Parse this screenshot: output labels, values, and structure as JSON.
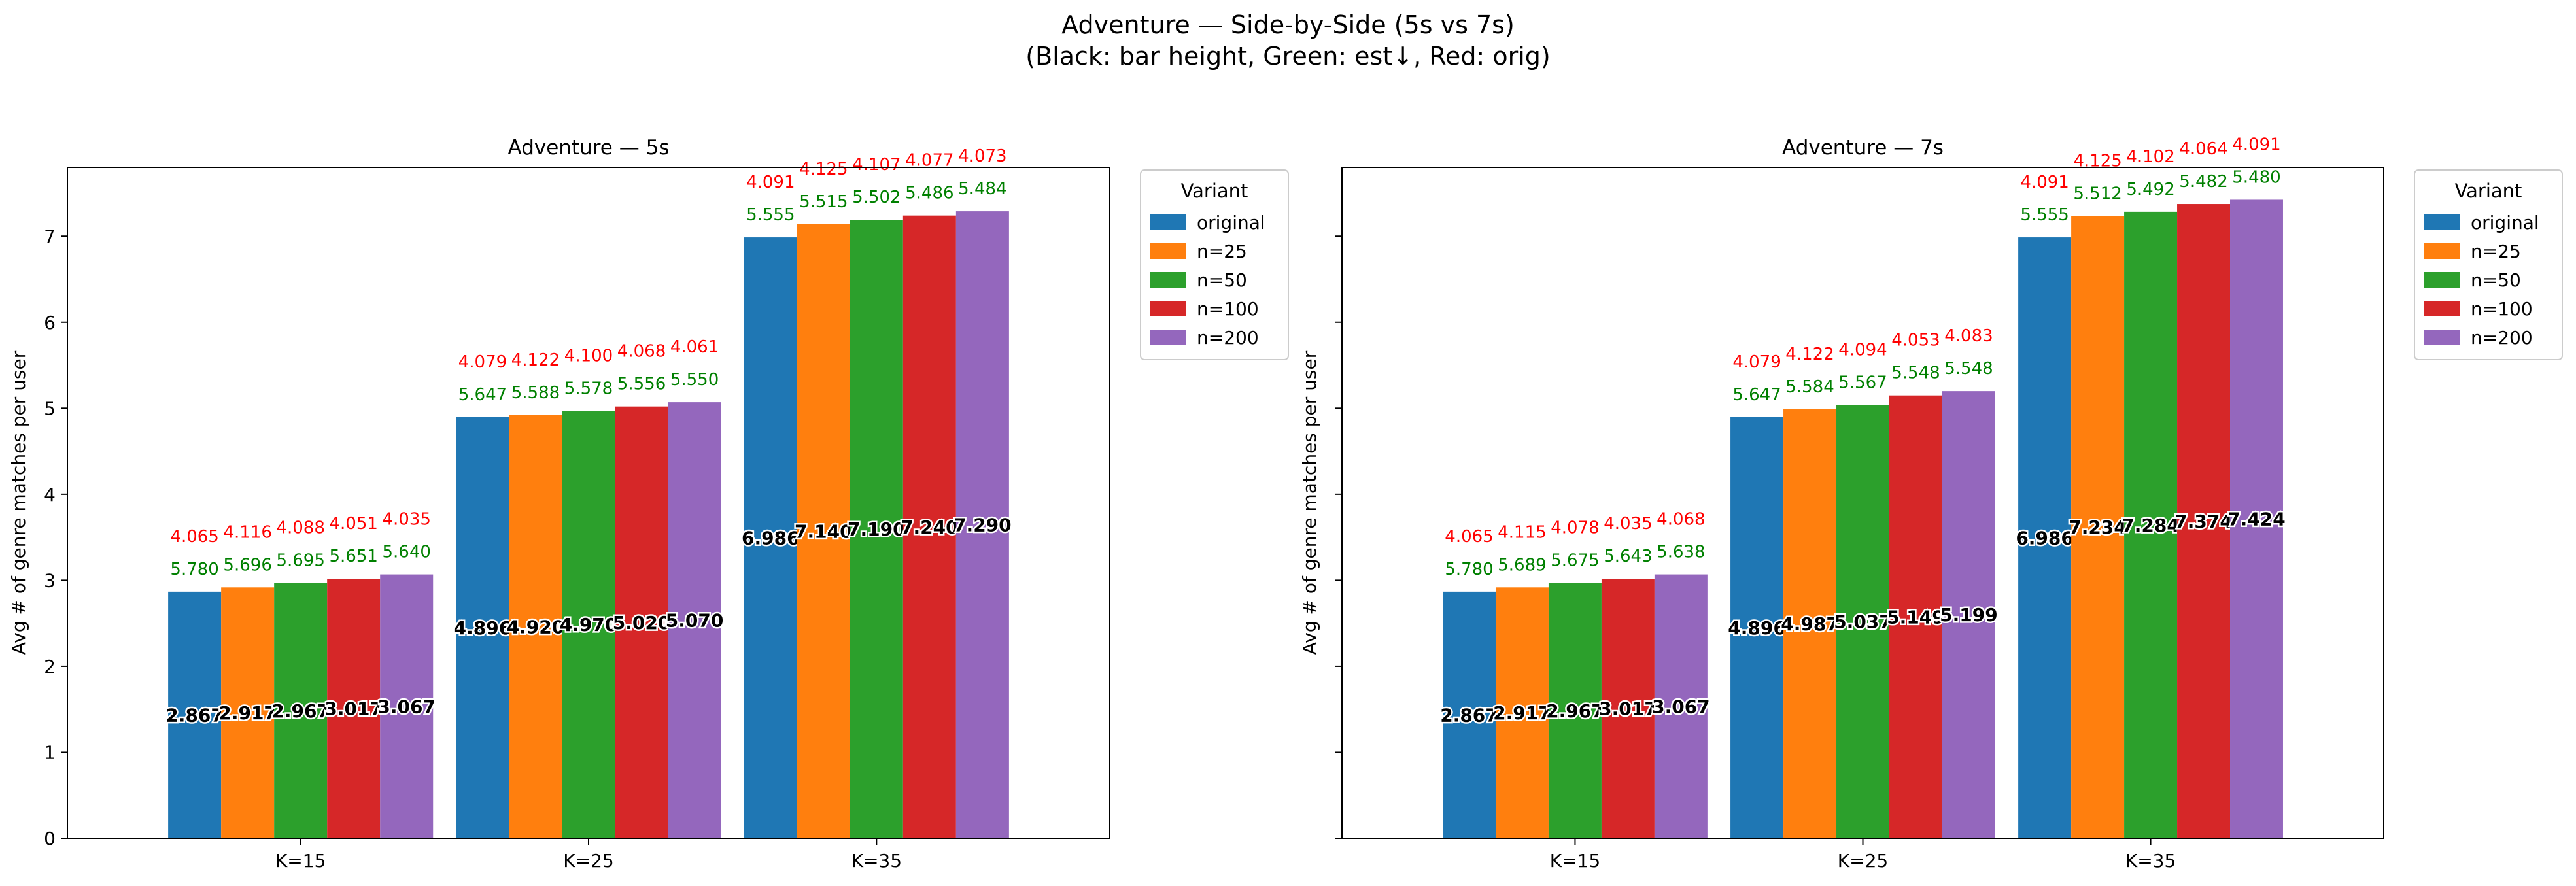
{
  "figure": {
    "title": "Adventure — Side-by-Side (5s vs 7s)",
    "subtitle": "(Black: bar height, Green: est↓, Red: orig)"
  },
  "chart_data": [
    {
      "type": "bar",
      "title": "Adventure — 5s",
      "xlabel": "",
      "ylabel": "Avg # of genre matches per user",
      "ylim": [
        0,
        7.8
      ],
      "yticks": [
        0,
        1,
        2,
        3,
        4,
        5,
        6,
        7
      ],
      "grid": false,
      "legend": {
        "title": "Variant",
        "placement": "outside-top-right"
      },
      "categories": [
        "K=15",
        "K=25",
        "K=35"
      ],
      "series": [
        {
          "name": "original",
          "color": "#1f77b4",
          "values": [
            2.867,
            4.896,
            6.986
          ],
          "value_labels": [
            "2.867",
            "4.896",
            "6.986"
          ],
          "est_labels": [
            "5.780",
            "5.647",
            "5.555"
          ],
          "orig_labels": [
            "4.065",
            "4.079",
            "4.091"
          ]
        },
        {
          "name": "n=25",
          "color": "#ff7f0e",
          "values": [
            2.917,
            4.92,
            7.14
          ],
          "value_labels": [
            "2.917",
            "4.920",
            "7.140"
          ],
          "est_labels": [
            "5.696",
            "5.588",
            "5.515"
          ],
          "orig_labels": [
            "4.116",
            "4.122",
            "4.125"
          ]
        },
        {
          "name": "n=50",
          "color": "#2ca02c",
          "values": [
            2.967,
            4.97,
            7.19
          ],
          "value_labels": [
            "2.967",
            "4.970",
            "7.190"
          ],
          "est_labels": [
            "5.695",
            "5.578",
            "5.502"
          ],
          "orig_labels": [
            "4.088",
            "4.100",
            "4.107"
          ]
        },
        {
          "name": "n=100",
          "color": "#d62728",
          "values": [
            3.017,
            5.02,
            7.24
          ],
          "value_labels": [
            "3.017",
            "5.020",
            "7.240"
          ],
          "est_labels": [
            "5.651",
            "5.556",
            "5.486"
          ],
          "orig_labels": [
            "4.051",
            "4.068",
            "4.077"
          ]
        },
        {
          "name": "n=200",
          "color": "#9467bd",
          "values": [
            3.067,
            5.07,
            7.29
          ],
          "value_labels": [
            "3.067",
            "5.070",
            "7.290"
          ],
          "est_labels": [
            "5.640",
            "5.550",
            "5.484"
          ],
          "orig_labels": [
            "4.035",
            "4.061",
            "4.073"
          ]
        }
      ]
    },
    {
      "type": "bar",
      "title": "Adventure — 7s",
      "xlabel": "",
      "ylabel": "Avg # of genre matches per user",
      "ylim": [
        0,
        7.8
      ],
      "yticks": [
        0,
        1,
        2,
        3,
        4,
        5,
        6,
        7
      ],
      "grid": false,
      "legend": {
        "title": "Variant",
        "placement": "outside-top-right"
      },
      "categories": [
        "K=15",
        "K=25",
        "K=35"
      ],
      "series": [
        {
          "name": "original",
          "color": "#1f77b4",
          "values": [
            2.867,
            4.896,
            6.986
          ],
          "value_labels": [
            "2.867",
            "4.896",
            "6.986"
          ],
          "est_labels": [
            "5.780",
            "5.647",
            "5.555"
          ],
          "orig_labels": [
            "4.065",
            "4.079",
            "4.091"
          ]
        },
        {
          "name": "n=25",
          "color": "#ff7f0e",
          "values": [
            2.917,
            4.987,
            7.234
          ],
          "value_labels": [
            "2.917",
            "4.987",
            "7.234"
          ],
          "est_labels": [
            "5.689",
            "5.584",
            "5.512"
          ],
          "orig_labels": [
            "4.115",
            "4.122",
            "4.125"
          ]
        },
        {
          "name": "n=50",
          "color": "#2ca02c",
          "values": [
            2.967,
            5.037,
            7.284
          ],
          "value_labels": [
            "2.967",
            "5.037",
            "7.284"
          ],
          "est_labels": [
            "5.675",
            "5.567",
            "5.492"
          ],
          "orig_labels": [
            "4.078",
            "4.094",
            "4.102"
          ]
        },
        {
          "name": "n=100",
          "color": "#d62728",
          "values": [
            3.017,
            5.149,
            7.374
          ],
          "value_labels": [
            "3.017",
            "5.149",
            "7.374"
          ],
          "est_labels": [
            "5.643",
            "5.548",
            "5.482"
          ],
          "orig_labels": [
            "4.035",
            "4.053",
            "4.064"
          ]
        },
        {
          "name": "n=200",
          "color": "#9467bd",
          "values": [
            3.067,
            5.199,
            7.424
          ],
          "value_labels": [
            "3.067",
            "5.199",
            "7.424"
          ],
          "est_labels": [
            "5.638",
            "5.548",
            "5.480"
          ],
          "orig_labels": [
            "4.068",
            "4.083",
            "4.091"
          ]
        }
      ]
    }
  ]
}
